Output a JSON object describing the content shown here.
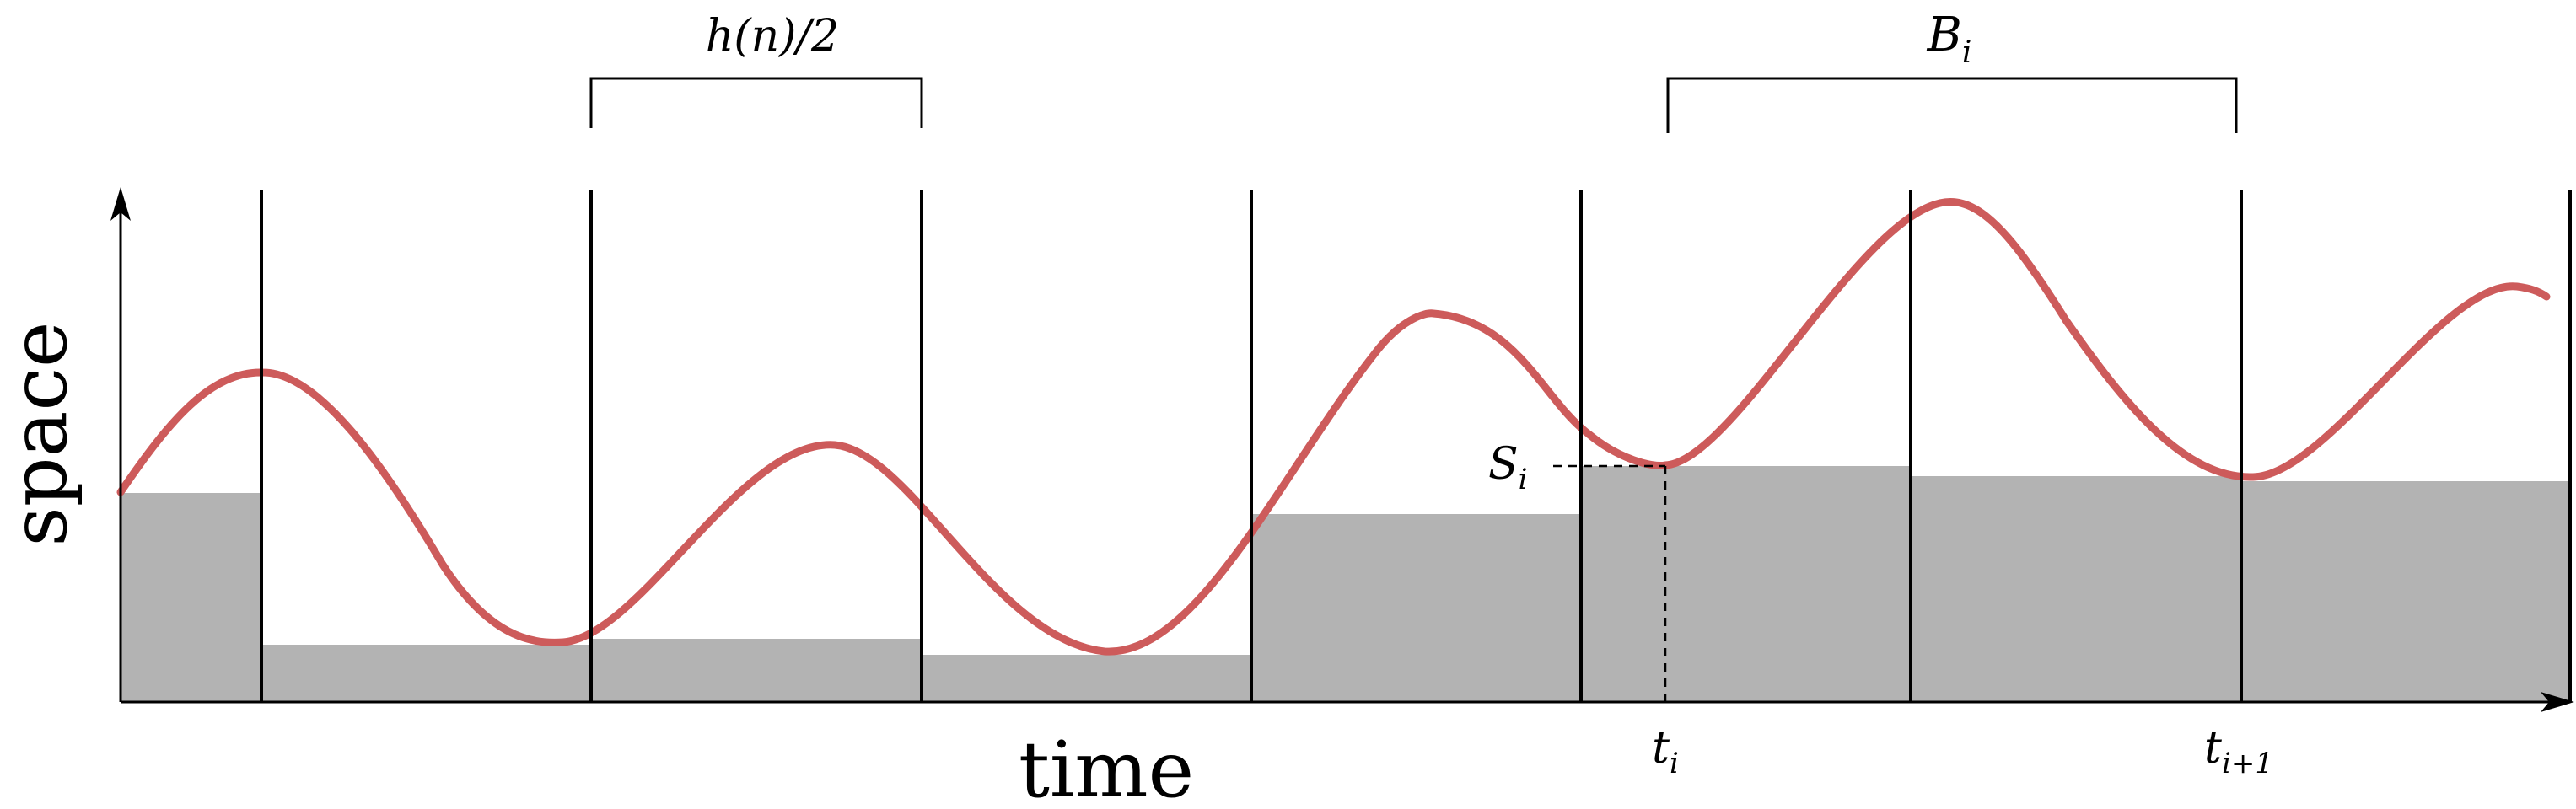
{
  "labels": {
    "y_axis": "space",
    "x_axis": "time",
    "bracket_left": "h(n)/2",
    "bracket_right": "B",
    "bracket_right_sub": "i",
    "s_label": "S",
    "s_label_sub": "i",
    "t_label": "t",
    "t_label_sub": "i",
    "t_next_label": "t",
    "t_next_label_sub": "i+1"
  },
  "colors": {
    "curve": "#cd5b5b",
    "shade": "#b3b3b3",
    "lines": "#000000"
  }
}
